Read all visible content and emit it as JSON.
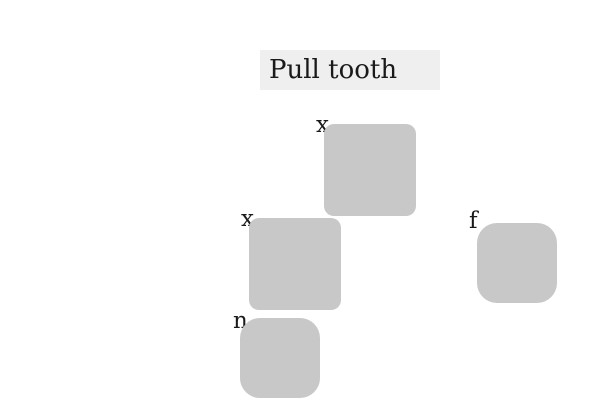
{
  "title": "Pull tooth",
  "tiles": [
    {
      "label": "x"
    },
    {
      "label": "x"
    },
    {
      "label": "f"
    },
    {
      "label": "n"
    }
  ],
  "colors": {
    "background": "#ffffff",
    "title_bar": "#efefef",
    "tile": "#c8c8c8",
    "text": "#1a1a1a"
  }
}
